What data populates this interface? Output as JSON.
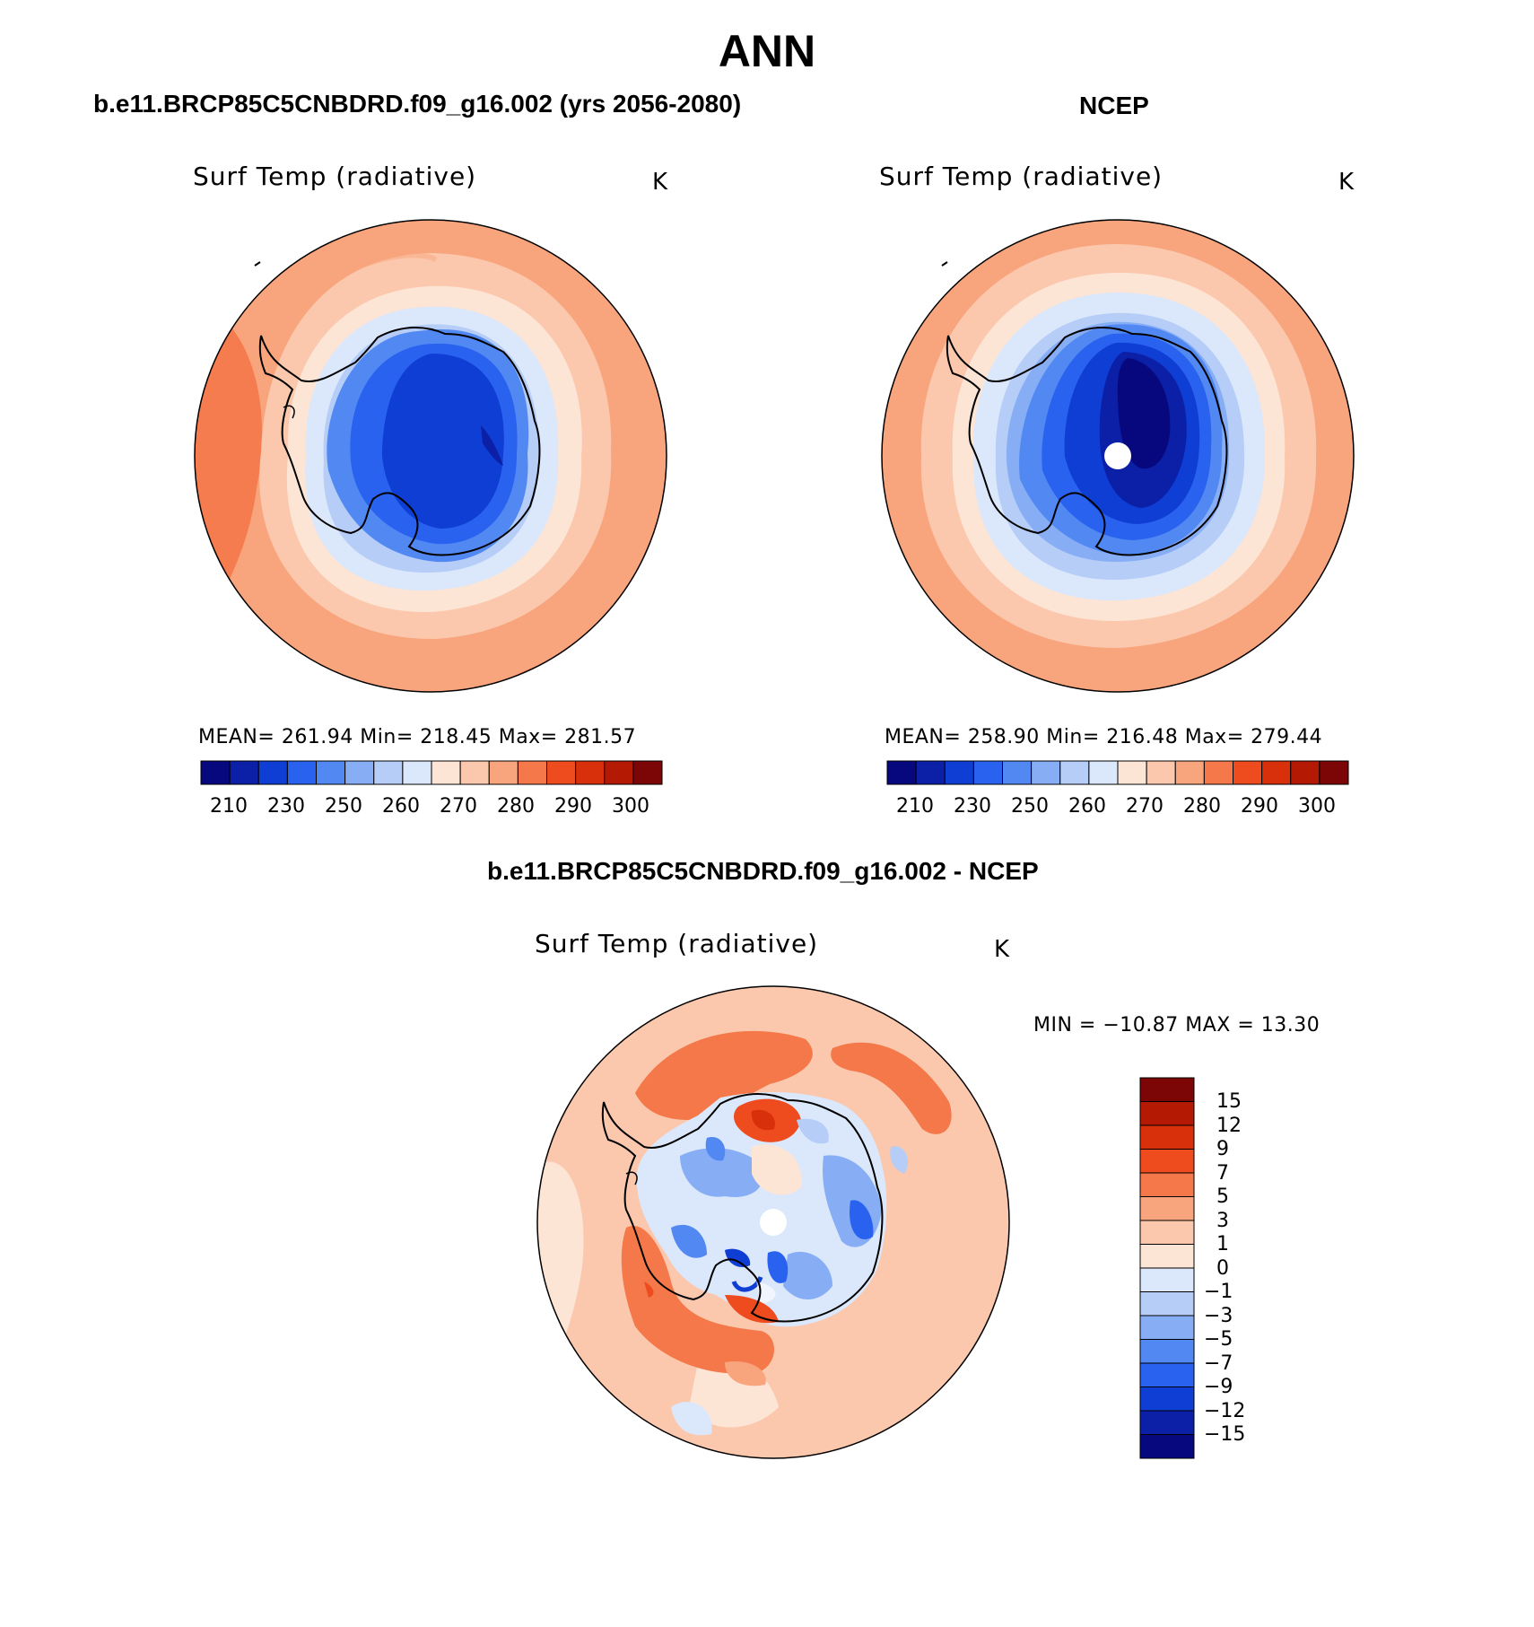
{
  "main_title": "ANN",
  "colors": {
    "abs_scale": [
      "#08087e",
      "#0b1fa7",
      "#0f3ed4",
      "#2a62f0",
      "#5288f2",
      "#87aef5",
      "#b5cdf7",
      "#dbe7fb",
      "#fde5d6",
      "#fbc8ad",
      "#f8a57e",
      "#f47849",
      "#ee4c1f",
      "#d9300c",
      "#b41904",
      "#7c0505"
    ],
    "diff_scale": [
      "#08087e",
      "#0b1fa7",
      "#0f3ed4",
      "#2a62f0",
      "#5288f2",
      "#87aef5",
      "#b5cdf7",
      "#dbe7fb",
      "#fde5d6",
      "#fbc8ad",
      "#f8a57e",
      "#f47849",
      "#ee4c1f",
      "#d9300c",
      "#b41904",
      "#7c0505"
    ]
  },
  "panels": [
    {
      "title": "b.e11.BRCP85C5CNBDRD.f09_g16.002 (yrs 2056-2080)",
      "variable": "Surf Temp (radiative)",
      "units": "K",
      "stats": "MEAN= 261.94   Min= 218.45   Max= 281.57",
      "colorbar_ticks": [
        "210",
        "230",
        "250",
        "260",
        "270",
        "280",
        "290",
        "300"
      ]
    },
    {
      "title": "NCEP",
      "variable": "Surf Temp (radiative)",
      "units": "K",
      "stats": "MEAN= 258.90   Min= 216.48   Max= 279.44",
      "colorbar_ticks": [
        "210",
        "230",
        "250",
        "260",
        "270",
        "280",
        "290",
        "300"
      ]
    },
    {
      "title": "b.e11.BRCP85C5CNBDRD.f09_g16.002 - NCEP",
      "variable": "Surf Temp (radiative)",
      "units": "K",
      "stats": "MIN = −10.87  MAX =   13.30",
      "colorbar_ticks": [
        "15",
        "12",
        "9",
        "7",
        "5",
        "3",
        "1",
        "0",
        "−1",
        "−3",
        "−5",
        "−7",
        "−9",
        "−12",
        "−15"
      ]
    }
  ]
}
